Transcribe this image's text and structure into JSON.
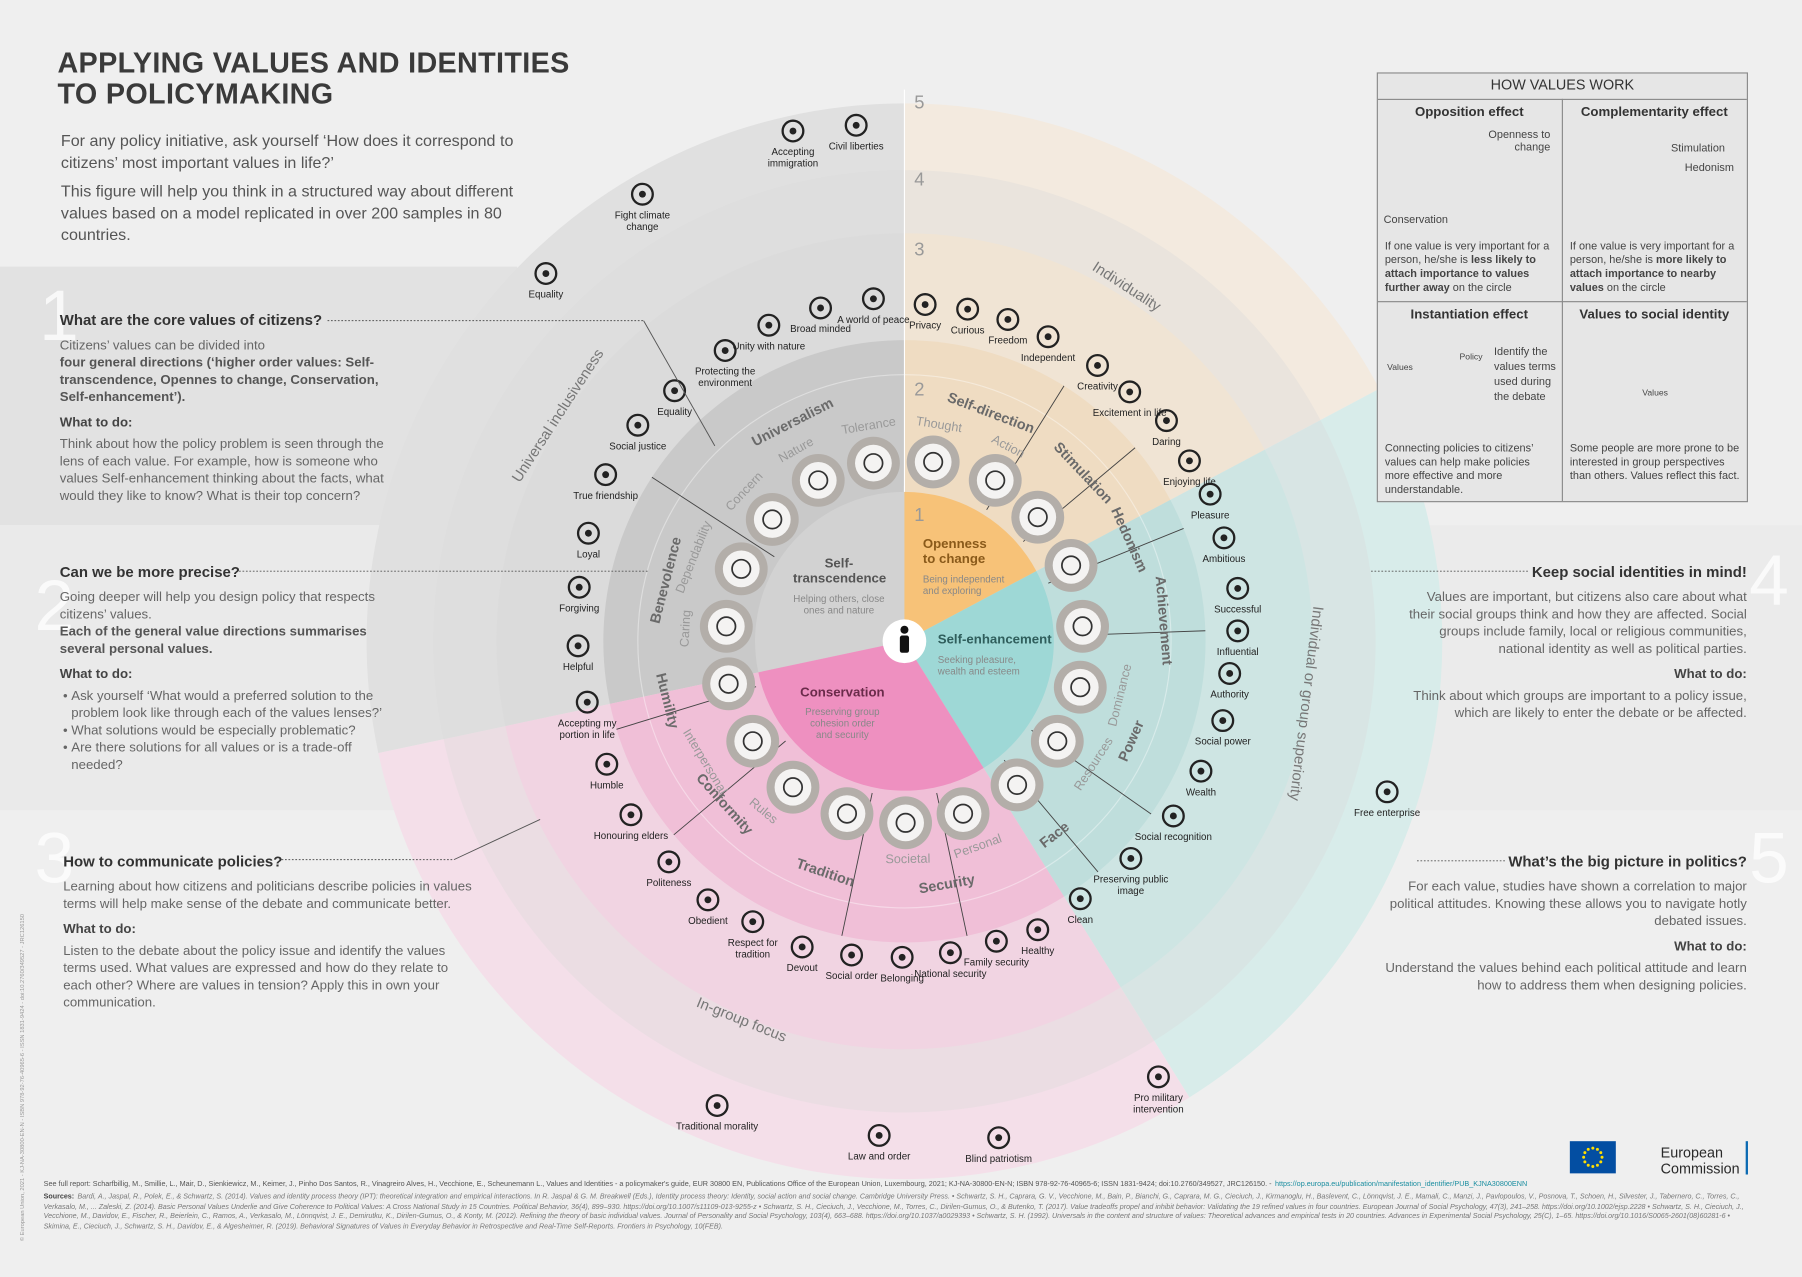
{
  "header": {
    "title_lines": [
      "APPLYING VALUES AND IDENTITIES",
      "TO POLICYMAKING"
    ],
    "intro": [
      "For any policy initiative, ask yourself ‘How does it correspond to citizens’ most important values in life?’",
      "This figure will help you think in a structured way about different values based on a model replicated in over 200 samples in 80 countries."
    ]
  },
  "sections": [
    {
      "number": "1",
      "heading": "What are the core values of citizens?",
      "text": "Citizens’ values can be divided into",
      "bold": "four general directions (‘higher order values: Self-transcendence, Opennes to change, Conservation, Self-enhancement’).",
      "todo_label": "What to do:",
      "todo": "Think about how the policy problem is seen through the lens of each value. For example, how is someone who values Self-enhancement thinking about the facts, what would they like to know? What is their top concern?"
    },
    {
      "number": "2",
      "heading": "Can we be more precise?",
      "text": "Going deeper will help you design policy that respects citizens’ values.",
      "bold": "Each of the general value directions summarises several personal values.",
      "todo_label": "What to do:",
      "todo": [
        "Ask yourself ‘What would a preferred solution to the problem look like through each of the values lenses?’",
        "What solutions would be especially problematic?",
        "Are there solutions for all values or is a trade-off needed?"
      ]
    },
    {
      "number": "3",
      "heading": "How to communicate policies?",
      "text": "Learning about how citizens and politicians describe policies in values terms will help make sense of the debate and communicate better.",
      "todo_label": "What to do:",
      "todo": "Listen to the debate about the policy issue and identify the values terms used. What values are expressed and how do they relate to each other? Where are values in tension? Apply this in own your communication."
    },
    {
      "number": "4",
      "heading": "Keep social identities in mind!",
      "text": "Values are important, but citizens also care about what their social groups think and how they are affected. Social groups include family, local or religious communities, national identity as well as political parties.",
      "todo_label": "What to do:",
      "todo": "Think about which groups are important to a policy issue, which are likely to enter the debate or be affected."
    },
    {
      "number": "5",
      "heading": "What’s the big picture in politics?",
      "text": "For each value, studies have shown a correlation to major political attitudes. Knowing these allows you to navigate hotly debated issues.",
      "todo_label": "What to do:",
      "todo": "Understand the values behind each political attitude and learn how to address them when designing policies."
    }
  ],
  "how_values_work": {
    "title": "HOW VALUES WORK",
    "cells": [
      {
        "heading": "Opposition effect",
        "labels": [
          "Openness to change",
          "Conservation"
        ],
        "parts": [
          {
            "t": "If one value is very important for a person, he/she is "
          },
          {
            "t": "less likely to attach importance to values further away",
            "bold": true
          },
          {
            "t": " on the circle"
          }
        ]
      },
      {
        "heading": "Complementarity effect",
        "labels": [
          "Stimulation",
          "Hedonism"
        ],
        "parts": [
          {
            "t": "If one value is very important for a person, he/she is "
          },
          {
            "t": "more likely to attach importance to nearby values",
            "bold": true
          },
          {
            "t": " on the circle"
          }
        ]
      },
      {
        "heading": "Instantiation effect",
        "labels": [
          "Values",
          "Policy"
        ],
        "side_text": "Identify the values terms used during the debate",
        "parts": [
          {
            "t": "Connecting policies to citizens’ values can help make policies more effective and more understandable."
          }
        ]
      },
      {
        "heading": "Values to social identity",
        "labels": [
          "Values"
        ],
        "parts": [
          {
            "t": "Some people are more prone to be interested in group perspectives than others. Values reflect this fact."
          }
        ]
      }
    ]
  },
  "circle": {
    "higher_order": [
      {
        "name": "Self-transcendence",
        "description": "Helping others, close ones and nature"
      },
      {
        "name": "Openness to change",
        "description": "Being independent and exploring"
      },
      {
        "name": "Self-enhancement",
        "description": "Seeking pleasure, wealth and esteem"
      },
      {
        "name": "Conservation",
        "description": "Preserving group cohesion order and security"
      }
    ],
    "values": [
      "Universalism",
      "Self-direction",
      "Stimulation",
      "Hedonism",
      "Achievement",
      "Power",
      "Face",
      "Security",
      "Tradition",
      "Conformity",
      "Humility",
      "Benevolence"
    ],
    "subvalues": [
      "Tolerance",
      "Nature",
      "Concern",
      "Thought",
      "Action",
      "Dependability",
      "Caring",
      "Interpersonal",
      "Rules",
      "Societal",
      "Personal",
      "Dominance",
      "Resources"
    ],
    "outer": [
      "Universal inclusiveness",
      "Individuality",
      "Individual or group superiority",
      "In-group focus"
    ],
    "rings": [
      "1",
      "2",
      "3",
      "4",
      "5"
    ],
    "policies": [
      "Accepting immigration",
      "Civil liberties",
      "Fight climate change",
      "Equality",
      "A world of peace",
      "Broad minded",
      "Unity with nature",
      "Protecting the environment",
      "Equality",
      "Social justice",
      "True friendship",
      "Loyal",
      "Forgiving",
      "Helpful",
      "Accepting my portion in life",
      "Humble",
      "Honouring elders",
      "Politeness",
      "Obedient",
      "Respect for tradition",
      "Devout",
      "Social order",
      "Belonging",
      "National security",
      "Family security",
      "Healthy",
      "Clean",
      "Preserving public image",
      "Social recognition",
      "Wealth",
      "Social power",
      "Authority",
      "Influential",
      "Successful",
      "Ambitious",
      "Pleasure",
      "Enjoying life",
      "Daring",
      "Excitement in life",
      "Creativity",
      "Independent",
      "Freedom",
      "Curious",
      "Privacy",
      "Free enterprise",
      "Pro military intervention",
      "Blind patriotism",
      "Law and order",
      "Traditional morality"
    ]
  },
  "footer": {
    "report": "See full report: Scharfbillig, M., Smillie, L., Mair, D., Sienkiewicz, M., Keimer, J., Pinho Dos Santos, R., Vinagreiro Alves, H., Vecchione, E., Scheunemann L., Values and Identities - a policymaker's guide, EUR 30800 EN, Publications Office of the European Union, Luxembourg, 2021; KJ-NA-30800-EN-N; ISBN 978-92-76-40965-6; ISSN 1831-9424; doi:10.2760/349527, JRC126150. -",
    "report_link": "https://op.europa.eu/publication/manifestation_identifier/PUB_KJNA30800ENN",
    "sources_label": "Sources:",
    "sources": "Bardi, A., Jaspal, R., Polek, E., & Schwartz, S. (2014). Values and identity process theory (IPT): theoretical integration and empirical interactions. In R. Jaspal & G. M. Breakwell (Eds.), Identity process theory: Identity, social action and social change. Cambridge University Press. • Schwartz, S. H., Caprara, G. V., Vecchione, M., Bain, P., Bianchi, G., Caprara, M. G., Cieciuch, J., Kirmanoglu, H., Baslevent, C., Lönnqvist, J. E., Mamali, C., Manzi, J., Pavlopoulos, V., Posnova, T., Schoen, H., Silvester, J., Tabernero, C., Torres, C., Verkasalo, M., ... Zaleski, Z. (2014). Basic Personal Values Underlie and Give Coherence to Political Values: A Cross National Study in 15 Countries. Political Behavior, 36(4), 899–930. https://doi.org/10.1007/s11109-013-9255-z • Schwartz, S. H., Cieciuch, J., Vecchione, M., Torres, C., Dirilen-Gumus, O., & Butenko, T. (2017). Value tradeoffs propel and inhibit behavior: Validating the 19 refined values in four countries. European Journal of Social Psychology, 47(3), 241–258. https://doi.org/10.1002/ejsp.2228 • Schwartz, S. H., Cieciuch, J., Vecchione, M., Davidov, E., Fischer, R., Beierlein, C., Ramos, A., Verkasalo, M., Lönnqvist, J. E., Demirutku, K., Dirilen-Gumus, O., & Konty, M. (2012). Refining the theory of basic individual values. Journal of Personality and Social Psychology, 103(4), 663–688. https://doi.org/10.1037/a0029393 • Schwartz, S. H. (1992). Universals in the content and structure of values: Theoretical advances and empirical tests in 20 countries. Advances in Experimental Social Psychology, 25(C), 1–65. https://doi.org/10.1016/S0065-2601(08)60281-6 • Skimina, E., Cieciuch, J., Schwartz, S. H., Davidov, E., & Algesheimer, R. (2019). Behavioral Signatures of Values in Everyday Behavior in Retrospective and Real-Time Self-Reports. Frontiers in Psychology, 10(FEB).",
    "logo_lines": [
      "European",
      "Commission"
    ],
    "copyright": "© European Union, 2021 - KJ-NA-30800-EN-N - ISBN 978-92-76-40965-6 - ISSN 1831-9424 - doi:10.2760/349527 - JRC126150"
  }
}
